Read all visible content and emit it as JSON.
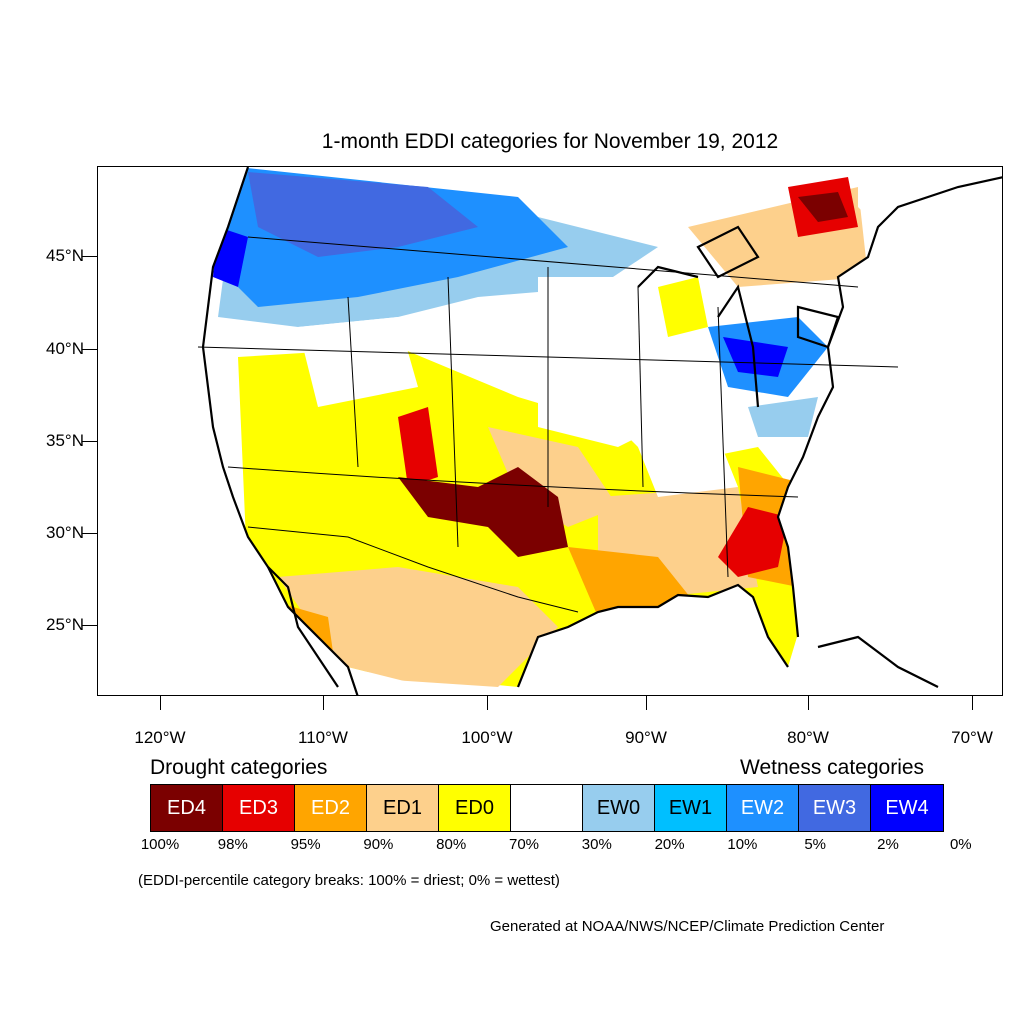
{
  "title": "1-month EDDI categories for November 19, 2012",
  "latitude_labels": [
    "45°N",
    "40°N",
    "35°N",
    "30°N",
    "25°N"
  ],
  "longitude_labels": [
    "120°W",
    "110°W",
    "100°W",
    "90°W",
    "80°W",
    "70°W"
  ],
  "legend": {
    "drought_heading": "Drought categories",
    "wetness_heading": "Wetness categories",
    "categories": [
      {
        "label": "ED4",
        "color": "#7b0000",
        "text_color": "#ffffff"
      },
      {
        "label": "ED3",
        "color": "#e60000",
        "text_color": "#ffffff"
      },
      {
        "label": "ED2",
        "color": "#ffa500",
        "text_color": "#ffffff"
      },
      {
        "label": "ED1",
        "color": "#fdd08c",
        "text_color": "#000000"
      },
      {
        "label": "ED0",
        "color": "#ffff00",
        "text_color": "#000000"
      },
      {
        "label": "",
        "color": "#ffffff",
        "text_color": "#000000"
      },
      {
        "label": "EW0",
        "color": "#97cdee",
        "text_color": "#000000"
      },
      {
        "label": "EW1",
        "color": "#00bfff",
        "text_color": "#000000"
      },
      {
        "label": "EW2",
        "color": "#1e90ff",
        "text_color": "#ffffff"
      },
      {
        "label": "EW3",
        "color": "#4169e1",
        "text_color": "#ffffff"
      },
      {
        "label": "EW4",
        "color": "#0000ff",
        "text_color": "#ffffff"
      }
    ],
    "percentiles": [
      "100%",
      "98%",
      "95%",
      "90%",
      "80%",
      "70%",
      "30%",
      "20%",
      "10%",
      "5%",
      "2%",
      "0%"
    ]
  },
  "note": "(EDDI-percentile category breaks: 100% = driest; 0% = wettest)",
  "credit": "Generated at NOAA/NWS/NCEP/Climate Prediction Center"
}
